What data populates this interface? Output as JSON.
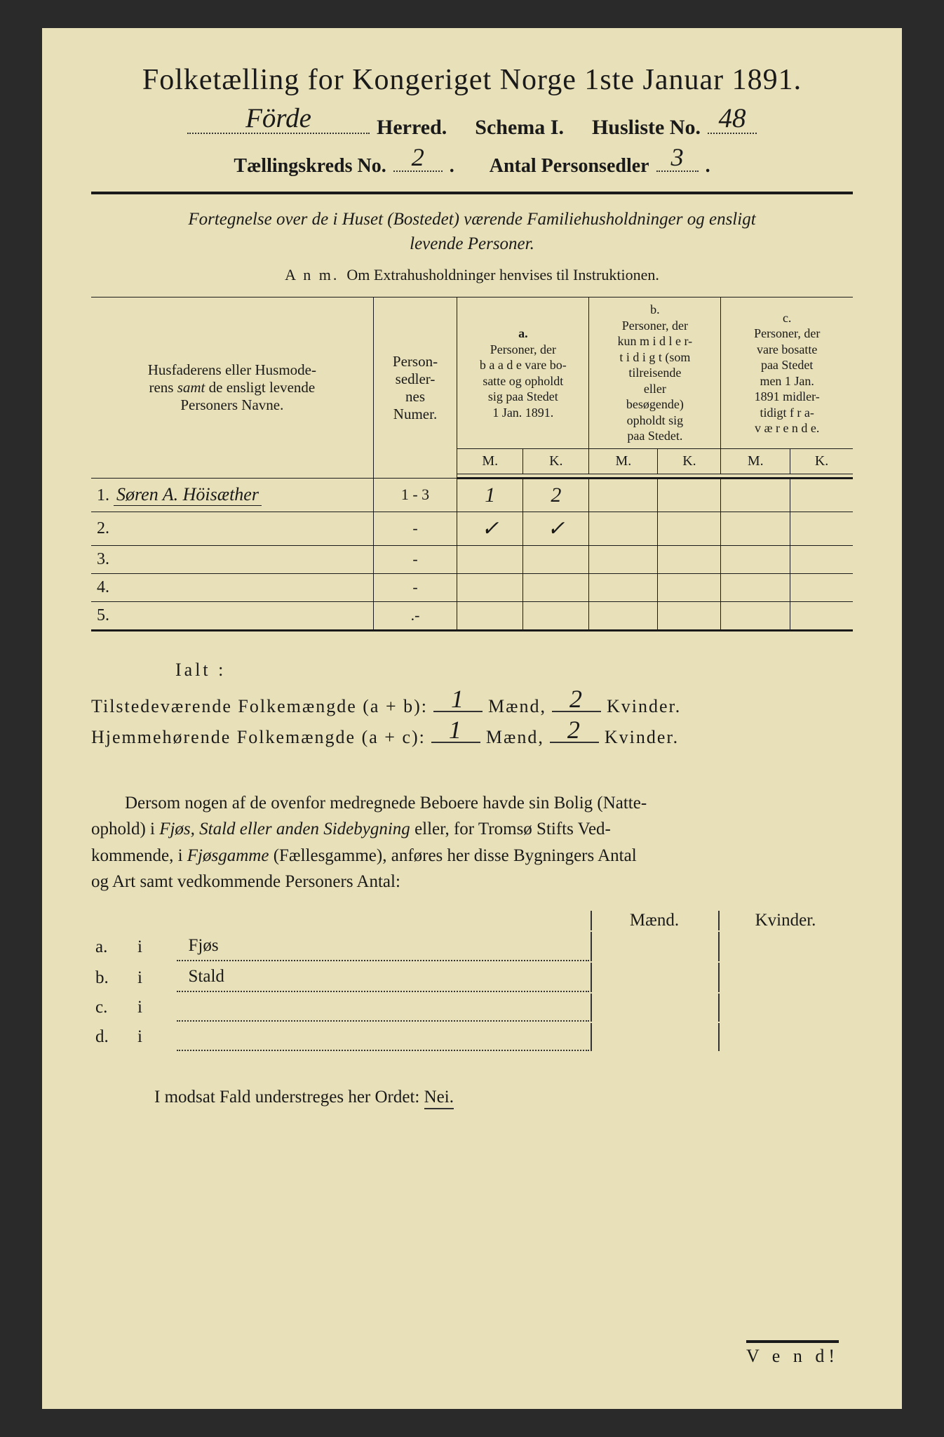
{
  "title": "Folketælling for Kongeriget Norge 1ste Januar 1891.",
  "herred": {
    "handwritten": "Förde",
    "label": "Herred.",
    "schema_label": "Schema I.",
    "husliste_label": "Husliste No.",
    "husliste_no": "48"
  },
  "line2": {
    "taellingskreds_label": "Tællingskreds No.",
    "taellingskreds_no": "2",
    "antal_label": "Antal Personsedler",
    "antal_value": "3"
  },
  "subtitle": {
    "line1": "Fortegnelse over de i Huset (Bostedet) værende Familiehusholdninger og ensligt",
    "line2": "levende Personer."
  },
  "anm": {
    "label": "A n m.",
    "text": "Om Extrahusholdninger henvises til Instruktionen."
  },
  "table": {
    "headers": {
      "name": "Husfaderens eller Husmoderens samt de ensligt levende Personers Navne.",
      "psn": "Personsedlernes Numer.",
      "a_label": "a.",
      "a": "Personer, der baade vare bosatte og opholdt sig paa Stedet 1 Jan. 1891.",
      "b_label": "b.",
      "b": "Personer, der kun midlertidigt (som tilreisende eller besøgende) opholdt sig paa Stedet.",
      "c_label": "c.",
      "c": "Personer, der vare bosatte paa Stedet men 1 Jan. 1891 midlertidigt fraværende.",
      "M": "M.",
      "K": "K."
    },
    "rows": [
      {
        "n": "1.",
        "name": "Søren A. Höisæther",
        "psn": "1 - 3",
        "aM": "1",
        "aK": "2",
        "bM": "",
        "bK": "",
        "cM": "",
        "cK": ""
      },
      {
        "n": "2.",
        "name": "",
        "psn": "-",
        "aM": "✓",
        "aK": "✓",
        "bM": "",
        "bK": "",
        "cM": "",
        "cK": ""
      },
      {
        "n": "3.",
        "name": "",
        "psn": "-",
        "aM": "",
        "aK": "",
        "bM": "",
        "bK": "",
        "cM": "",
        "cK": ""
      },
      {
        "n": "4.",
        "name": "",
        "psn": "-",
        "aM": "",
        "aK": "",
        "bM": "",
        "bK": "",
        "cM": "",
        "cK": ""
      },
      {
        "n": "5.",
        "name": "",
        "psn": ".-",
        "aM": "",
        "aK": "",
        "bM": "",
        "bK": "",
        "cM": "",
        "cK": ""
      }
    ]
  },
  "ialt": {
    "label": "Ialt :",
    "line1_label": "Tilstedeværende Folkemængde (a + b):",
    "line2_label": "Hjemmehørende Folkemængde (a + c):",
    "maend": "Mænd,",
    "kvinder": "Kvinder.",
    "line1_m": "1",
    "line1_k": "2",
    "line2_m": "1",
    "line2_k": "2"
  },
  "paragraph": "Dersom nogen af de ovenfor medregnede Beboere havde sin Bolig (Natteophold) i Fjøs, Stald eller anden Sidebygning eller, for Tromsø Stifts Vedkommende, i Fjøsgamme (Fællesgamme), anføres her disse Bygningers Antal og Art samt vedkommende Personers Antal:",
  "dwelling": {
    "maend": "Mænd.",
    "kvinder": "Kvinder.",
    "rows": [
      {
        "k": "a.",
        "i": "i",
        "label": "Fjøs"
      },
      {
        "k": "b.",
        "i": "i",
        "label": "Stald"
      },
      {
        "k": "c.",
        "i": "i",
        "label": ""
      },
      {
        "k": "d.",
        "i": "i",
        "label": ""
      }
    ]
  },
  "nei": {
    "prefix": "I modsat Fald understreges her Ordet:",
    "word": "Nei."
  },
  "vend": "V e n d!",
  "colors": {
    "paper": "#e8e0b8",
    "ink": "#1a1a1a",
    "background": "#2a2a2a"
  }
}
